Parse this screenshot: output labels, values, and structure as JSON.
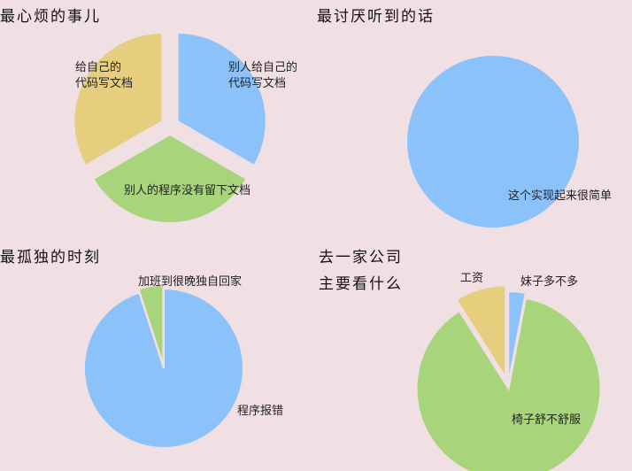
{
  "chart_data": [
    {
      "type": "pie",
      "title": "最心烦的事儿",
      "slices": [
        {
          "label_lines": [
            "别人给自己的",
            "代码写文档"
          ],
          "value": 33.3,
          "color": "#8cc2fa"
        },
        {
          "label_lines": [
            "别人的程序没有留下文档"
          ],
          "value": 33.3,
          "color": "#a8d57c"
        },
        {
          "label_lines": [
            "给自己的",
            "代码写文档"
          ],
          "value": 33.3,
          "color": "#e5cf7e"
        }
      ]
    },
    {
      "type": "pie",
      "title": "最讨厌听到的话",
      "slices": [
        {
          "label_lines": [
            "这个实现起来很简单"
          ],
          "value": 100,
          "color": "#8cc2fa"
        }
      ]
    },
    {
      "type": "pie",
      "title": "最孤独的时刻",
      "slices": [
        {
          "label_lines": [
            "程序报错"
          ],
          "value": 95,
          "color": "#8cc2fa"
        },
        {
          "label_lines": [
            "加班到很晚独自回家"
          ],
          "value": 5,
          "color": "#a8d57c"
        }
      ]
    },
    {
      "type": "pie",
      "title": "去一家公司 主要看什么",
      "title_lines": [
        "去一家公司",
        "主要看什么"
      ],
      "slices": [
        {
          "label_lines": [
            "妹子多不多"
          ],
          "value": 3,
          "color": "#8cc2fa"
        },
        {
          "label_lines": [
            "椅子舒不舒服"
          ],
          "value": 88,
          "color": "#a8d57c"
        },
        {
          "label_lines": [
            "工资"
          ],
          "value": 9,
          "color": "#e5cf7e"
        }
      ]
    }
  ]
}
